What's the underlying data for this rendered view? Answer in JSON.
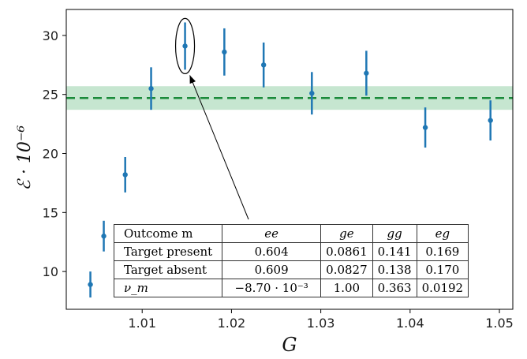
{
  "chart_data": {
    "type": "scatter",
    "xlabel": "G",
    "ylabel": "ℰ · 10⁻⁶",
    "xlim": [
      1.0015,
      1.0515
    ],
    "ylim": [
      6.8,
      32.2
    ],
    "xticks": [
      "1.01",
      "1.02",
      "1.03",
      "1.04",
      "1.05"
    ],
    "xtick_values": [
      1.01,
      1.02,
      1.03,
      1.04,
      1.05
    ],
    "yticks": [
      "10",
      "15",
      "20",
      "25",
      "30"
    ],
    "ytick_values": [
      10,
      15,
      20,
      25,
      30
    ],
    "series": [
      {
        "x": [
          1.0042,
          1.0057,
          1.0081,
          1.011,
          1.0148,
          1.0192,
          1.0236,
          1.029,
          1.0351,
          1.0417,
          1.049
        ],
        "y": [
          8.9,
          13.0,
          18.2,
          25.5,
          29.1,
          28.6,
          27.5,
          25.1,
          26.8,
          22.2,
          22.8
        ],
        "yerr": [
          1.1,
          1.3,
          1.5,
          1.8,
          2.0,
          2.0,
          1.9,
          1.8,
          1.9,
          1.7,
          1.7
        ],
        "color": "#1f77b4"
      }
    ],
    "reference_line": {
      "y": 24.7,
      "band": [
        23.7,
        25.7
      ],
      "color": "#1a8a3a",
      "band_color": "#b8e0c4",
      "style": "dashed"
    },
    "highlight": {
      "x": 1.0148,
      "y": 29.1
    },
    "table": {
      "header": [
        "Outcome m",
        "ee",
        "ge",
        "gg",
        "eg"
      ],
      "rows": [
        [
          "Target present",
          "0.604",
          "0.0861",
          "0.141",
          "0.169"
        ],
        [
          "Target absent",
          "0.609",
          "0.0827",
          "0.138",
          "0.170"
        ],
        [
          "ν_m",
          "−8.70 · 10⁻³",
          "1.00",
          "0.363",
          "0.0192"
        ]
      ]
    }
  }
}
